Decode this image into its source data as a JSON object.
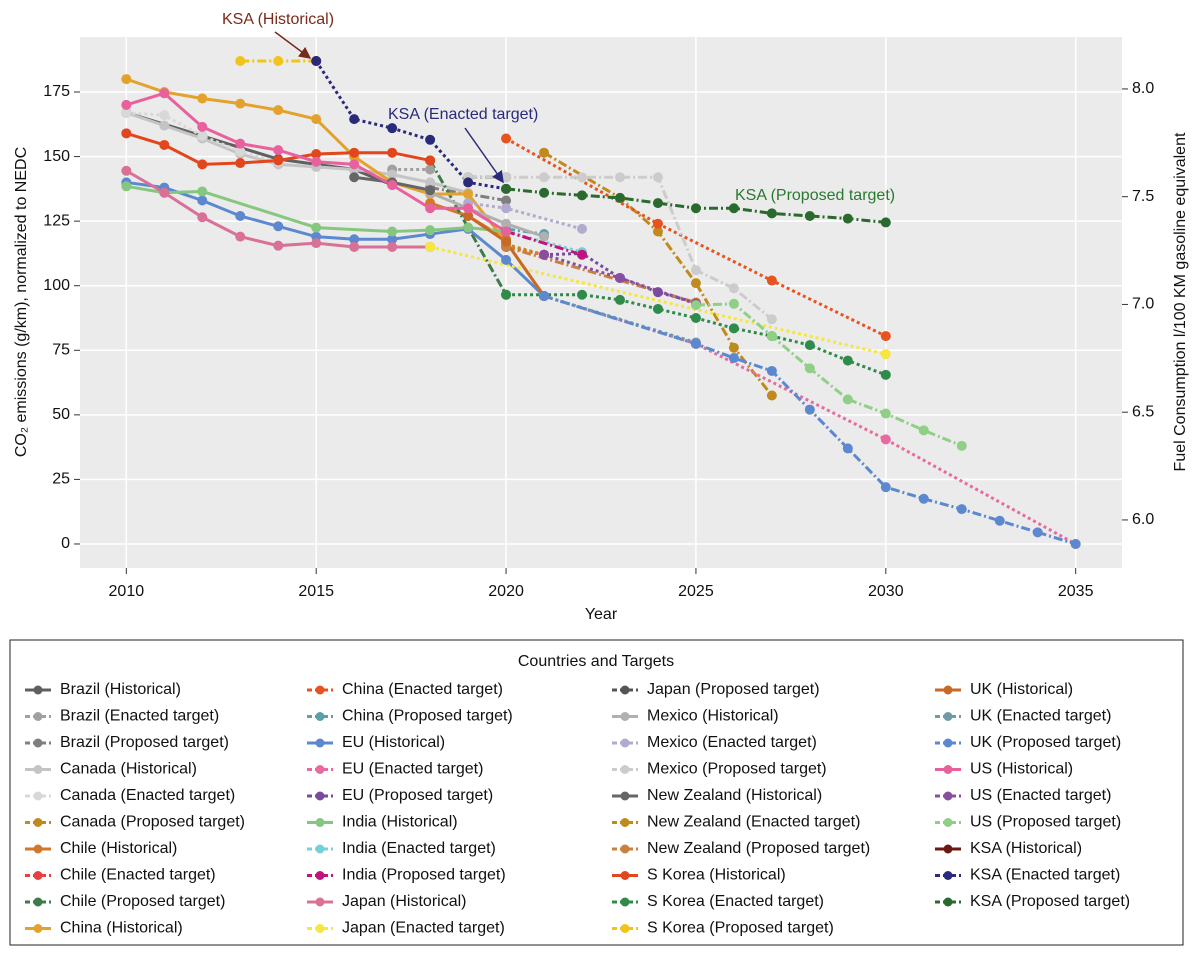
{
  "chart_data": {
    "type": "line",
    "xlabel": "Year",
    "ylabel": "CO₂ emissions (g/km), normalized to NEDC",
    "y2label": "Fuel Consumption l/100 KM gasoline equivalent",
    "legend_title": "Countries and Targets",
    "annotations": [
      "KSA (Historical)",
      "KSA (Enacted target)",
      "KSA (Proposed target)"
    ],
    "xlim": [
      2008.78,
      2036.22
    ],
    "xticks": [
      2010,
      2015,
      2020,
      2025,
      2030,
      2035
    ],
    "ylim": [
      -9.3,
      196.3
    ],
    "yticks": [
      0,
      25,
      50,
      75,
      100,
      125,
      150,
      175
    ],
    "y2lim": [
      5.777,
      8.241
    ],
    "y2ticks": [
      {
        "value": 6.0,
        "label": "6.0"
      },
      {
        "value": 6.5,
        "label": "6.5"
      },
      {
        "value": 7.0,
        "label": "7.0"
      },
      {
        "value": 7.5,
        "label": "7.5"
      },
      {
        "value": 8.0,
        "label": "8.0"
      }
    ],
    "grid": true,
    "series": [
      {
        "name": "Brazil (Historical)",
        "color": "#5f5f5f",
        "dash": "solid",
        "x": [
          2010,
          2012,
          2014,
          2016,
          2017
        ],
        "values": [
          167,
          158,
          149,
          145,
          139
        ]
      },
      {
        "name": "Brazil (Enacted target)",
        "color": "#a0a0a0",
        "dash": "dotted",
        "x": [
          2017,
          2018
        ],
        "values": [
          145,
          145
        ]
      },
      {
        "name": "Brazil (Proposed target)",
        "color": "#7f7f7f",
        "dash": "dashdot",
        "x": [
          2018,
          2020
        ],
        "values": [
          138,
          133
        ]
      },
      {
        "name": "Canada (Historical)",
        "color": "#c4c4c4",
        "dash": "solid",
        "x": [
          2010,
          2011,
          2012,
          2013,
          2014,
          2015,
          2016,
          2017,
          2018,
          2019
        ],
        "values": [
          167,
          162,
          157,
          151,
          147,
          146,
          145,
          143,
          140,
          136
        ]
      },
      {
        "name": "Canada (Enacted target)",
        "color": "#d8d8d8",
        "dash": "dotted",
        "x": [
          2010,
          2011,
          2012,
          2013,
          2014
        ],
        "values": [
          167,
          166,
          158,
          152,
          148
        ]
      },
      {
        "name": "Canada (Proposed target)",
        "color": "#c08a1c",
        "dash": "dashdot",
        "x": [
          2021,
          2023,
          2024,
          2025,
          2026,
          2027
        ],
        "values": [
          151.5,
          134,
          121,
          101,
          76,
          57.5
        ]
      },
      {
        "name": "Chile (Historical)",
        "color": "#d2772e",
        "dash": "solid",
        "x": [
          2018,
          2019,
          2020
        ],
        "values": [
          132,
          127,
          118
        ]
      },
      {
        "name": "Chile (Enacted target)",
        "color": "#e64040",
        "dash": "dotted",
        "x": [
          2020,
          2021
        ],
        "values": [
          115,
          112
        ]
      },
      {
        "name": "Chile (Proposed target)",
        "color": "#3a7d4a",
        "dash": "dashdot",
        "x": [
          2018,
          2019,
          2020
        ],
        "values": [
          148.5,
          122.5,
          96.5
        ]
      },
      {
        "name": "China (Historical)",
        "color": "#e3a22c",
        "dash": "solid",
        "x": [
          2010,
          2011,
          2012,
          2013,
          2014,
          2015,
          2016,
          2017,
          2018,
          2019,
          2020,
          2021
        ],
        "values": [
          180,
          175,
          172.5,
          170.5,
          168,
          164.5,
          150,
          140,
          135.5,
          135.5,
          117,
          96
        ]
      },
      {
        "name": "China (Enacted target)",
        "color": "#e8521f",
        "dash": "dotted",
        "x": [
          2020,
          2024,
          2027,
          2030
        ],
        "values": [
          157,
          124,
          102,
          80.5
        ]
      },
      {
        "name": "China (Proposed target)",
        "color": "#5aa0a8",
        "dash": "dashdot",
        "x": [
          2020,
          2021
        ],
        "values": [
          122,
          120
        ]
      },
      {
        "name": "EU (Historical)",
        "color": "#5b88cf",
        "dash": "solid",
        "x": [
          2010,
          2011,
          2012,
          2013,
          2014,
          2015,
          2016,
          2017,
          2018,
          2019,
          2020,
          2021
        ],
        "values": [
          140,
          138,
          133,
          127,
          123,
          119,
          118,
          118,
          120,
          122,
          110,
          96
        ]
      },
      {
        "name": "EU (Enacted target)",
        "color": "#e86aa0",
        "dash": "dotted",
        "x": [
          2021,
          2025,
          2030,
          2035
        ],
        "values": [
          96,
          77.5,
          40.5,
          0
        ]
      },
      {
        "name": "EU (Proposed target)",
        "color": "#7b4a9e",
        "dash": "dotted",
        "x": [
          2021,
          2022,
          2023,
          2024,
          2025
        ],
        "values": [
          112,
          112.5,
          103,
          97.5,
          93.5
        ]
      },
      {
        "name": "India (Historical)",
        "color": "#86c780",
        "dash": "solid",
        "x": [
          2010,
          2011,
          2012,
          2015,
          2017,
          2018,
          2019,
          2020
        ],
        "values": [
          138.5,
          136,
          136.5,
          122.5,
          121,
          121.5,
          122.5,
          121
        ]
      },
      {
        "name": "India (Enacted target)",
        "color": "#76d0d8",
        "dash": "dotted",
        "x": [
          2020,
          2022
        ],
        "values": [
          121,
          113
        ]
      },
      {
        "name": "India (Proposed target)",
        "color": "#c0137e",
        "dash": "dashdot",
        "x": [
          2020,
          2022
        ],
        "values": [
          121,
          112
        ]
      },
      {
        "name": "Japan (Historical)",
        "color": "#d97097",
        "dash": "solid",
        "x": [
          2010,
          2011,
          2012,
          2013,
          2014,
          2015,
          2016,
          2017,
          2018
        ],
        "values": [
          144.5,
          136,
          126.5,
          119,
          115.5,
          116.5,
          115,
          115,
          115
        ]
      },
      {
        "name": "Japan (Enacted target)",
        "color": "#f5e642",
        "dash": "dotted",
        "x": [
          2018,
          2030
        ],
        "values": [
          115,
          73.5
        ]
      },
      {
        "name": "Japan (Proposed target)",
        "color": "#555555",
        "dash": "dashdot",
        "x": [
          2019,
          2020
        ],
        "values": [
          142,
          142
        ]
      },
      {
        "name": "Mexico (Historical)",
        "color": "#b0b0b0",
        "dash": "solid",
        "x": [
          2018,
          2019,
          2020,
          2021
        ],
        "values": [
          136,
          130,
          124,
          119
        ]
      },
      {
        "name": "Mexico (Enacted target)",
        "color": "#b3aad0",
        "dash": "dotted",
        "x": [
          2019,
          2020,
          2022
        ],
        "values": [
          132,
          130,
          122
        ]
      },
      {
        "name": "Mexico (Proposed target)",
        "color": "#cccccc",
        "dash": "dashdot",
        "x": [
          2019,
          2020,
          2021,
          2022,
          2023,
          2024,
          2025,
          2026,
          2027
        ],
        "values": [
          142,
          142,
          142,
          142,
          142,
          142,
          106,
          99,
          87
        ]
      },
      {
        "name": "New Zealand (Historical)",
        "color": "#666666",
        "dash": "solid",
        "x": [
          2016,
          2017,
          2018
        ],
        "values": [
          142,
          140,
          137
        ]
      },
      {
        "name": "New Zealand (Enacted target)",
        "color": "#c08a1c",
        "dash": "dotted",
        "x": [
          2020,
          2021
        ],
        "values": [
          116,
          112
        ]
      },
      {
        "name": "New Zealand (Proposed target)",
        "color": "#c98040",
        "dash": "dashdot",
        "x": [
          2020,
          2025
        ],
        "values": [
          115,
          93.5
        ]
      },
      {
        "name": "S Korea (Historical)",
        "color": "#e2461d",
        "dash": "solid",
        "x": [
          2010,
          2011,
          2012,
          2013,
          2014,
          2015,
          2016,
          2017,
          2018
        ],
        "values": [
          159,
          154.5,
          147,
          147.5,
          148.5,
          151,
          151.5,
          151.5,
          148.5
        ]
      },
      {
        "name": "S Korea (Enacted target)",
        "color": "#2e8b4a",
        "dash": "dotted",
        "x": [
          2020,
          2022,
          2023,
          2024,
          2025,
          2026,
          2027,
          2028,
          2029,
          2030
        ],
        "values": [
          96.5,
          96.5,
          94.5,
          91,
          87.5,
          83.5,
          80.5,
          77,
          71,
          65.5
        ]
      },
      {
        "name": "S Korea (Proposed target)",
        "color": "#f0c419",
        "dash": "dashdot",
        "x": [
          2013,
          2014,
          2015
        ],
        "values": [
          187,
          187,
          187
        ]
      },
      {
        "name": "UK (Historical)",
        "color": "#c86a26",
        "dash": "solid",
        "x": [
          2019,
          2020,
          2021
        ],
        "values": [
          127,
          117,
          96
        ]
      },
      {
        "name": "UK (Enacted target)",
        "color": "#6f9aa8",
        "dash": "dotted",
        "x": [
          2021,
          2025
        ],
        "values": [
          96,
          78
        ]
      },
      {
        "name": "UK (Proposed target)",
        "color": "#5b88cf",
        "dash": "dashdot",
        "x": [
          2021,
          2025,
          2026,
          2027,
          2028,
          2029,
          2030,
          2031,
          2032,
          2033,
          2034,
          2035
        ],
        "values": [
          96,
          77.5,
          72,
          67,
          52,
          37,
          22,
          17.5,
          13.5,
          9,
          4.5,
          0
        ]
      },
      {
        "name": "US (Historical)",
        "color": "#e8609c",
        "dash": "solid",
        "x": [
          2010,
          2011,
          2012,
          2013,
          2014,
          2015,
          2016,
          2017,
          2018,
          2019,
          2020
        ],
        "values": [
          170,
          174.5,
          161.5,
          155,
          152.5,
          148,
          147,
          139,
          130,
          130,
          121
        ]
      },
      {
        "name": "US (Enacted target)",
        "color": "#8a4ea0",
        "dash": "dotted",
        "x": [
          2021,
          2023,
          2025
        ],
        "values": [
          112,
          103,
          93
        ]
      },
      {
        "name": "US (Proposed target)",
        "color": "#8fcf86",
        "dash": "dashdot",
        "x": [
          2025,
          2026,
          2027,
          2028,
          2029,
          2030,
          2031,
          2032
        ],
        "values": [
          92.5,
          93,
          80.5,
          68,
          56,
          50.5,
          44,
          38
        ]
      },
      {
        "name": "KSA (Historical)",
        "color": "#6b1a10",
        "dash": "solid",
        "x": [
          2015
        ],
        "values": [
          187
        ]
      },
      {
        "name": "KSA (Enacted target)",
        "color": "#2a2a7a",
        "dash": "dotted",
        "x": [
          2015,
          2016,
          2017,
          2018,
          2019,
          2020
        ],
        "values": [
          187,
          164.5,
          161,
          156.5,
          140,
          137.5
        ]
      },
      {
        "name": "KSA (Proposed target)",
        "color": "#2a6a2e",
        "dash": "dashdot",
        "x": [
          2020,
          2021,
          2022,
          2023,
          2024,
          2025,
          2026,
          2027,
          2028,
          2029,
          2030
        ],
        "values": [
          137.5,
          136,
          135,
          134,
          132,
          130,
          130,
          128,
          127,
          126,
          124.5
        ]
      }
    ]
  }
}
